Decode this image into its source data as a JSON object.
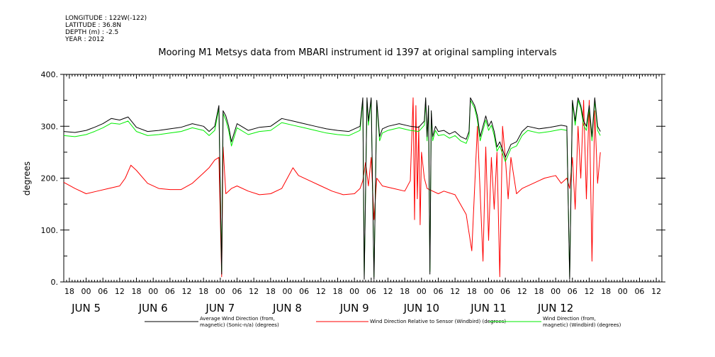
{
  "header": {
    "longitude": "LONGITUDE : 122W(-122)",
    "latitude": "LATITUDE : 36.8N",
    "depth": "DEPTH (m) : -2.5",
    "year": "YEAR : 2012",
    "title": "Mooring M1 Metsys data from MBARI instrument id 1397 at original sampling intervals"
  },
  "chart_data": {
    "type": "line",
    "title": "Mooring M1 Metsys data from MBARI instrument id 1397 at original sampling intervals",
    "ylabel": "degrees",
    "ylim": [
      0,
      400
    ],
    "yticks": [
      0,
      100,
      200,
      300,
      400
    ],
    "ytick_labels": [
      "0.",
      "100.",
      "200.",
      "300.",
      "400."
    ],
    "xlim_hours": [
      -8,
      206
    ],
    "x_unit": "hours since 2012-06-05 00:00",
    "xticks": [
      {
        "h": -6,
        "label": "18"
      },
      {
        "h": 0,
        "label": "00"
      },
      {
        "h": 6,
        "label": "06"
      },
      {
        "h": 12,
        "label": "12"
      },
      {
        "h": 18,
        "label": "18"
      },
      {
        "h": 24,
        "label": "00"
      },
      {
        "h": 30,
        "label": "06"
      },
      {
        "h": 36,
        "label": "12"
      },
      {
        "h": 42,
        "label": "18"
      },
      {
        "h": 48,
        "label": "00"
      },
      {
        "h": 54,
        "label": "06"
      },
      {
        "h": 60,
        "label": "12"
      },
      {
        "h": 66,
        "label": "18"
      },
      {
        "h": 72,
        "label": "00"
      },
      {
        "h": 78,
        "label": "06"
      },
      {
        "h": 84,
        "label": "12"
      },
      {
        "h": 90,
        "label": "18"
      },
      {
        "h": 96,
        "label": "00"
      },
      {
        "h": 102,
        "label": "06"
      },
      {
        "h": 108,
        "label": "12"
      },
      {
        "h": 114,
        "label": "18"
      },
      {
        "h": 120,
        "label": "00"
      },
      {
        "h": 126,
        "label": "06"
      },
      {
        "h": 132,
        "label": "12"
      },
      {
        "h": 138,
        "label": "18"
      },
      {
        "h": 144,
        "label": "00"
      },
      {
        "h": 150,
        "label": "06"
      },
      {
        "h": 156,
        "label": "12"
      },
      {
        "h": 162,
        "label": "18"
      },
      {
        "h": 168,
        "label": "00"
      },
      {
        "h": 174,
        "label": "06"
      },
      {
        "h": 180,
        "label": "12"
      },
      {
        "h": 186,
        "label": "18"
      },
      {
        "h": 192,
        "label": "00"
      },
      {
        "h": 198,
        "label": "06"
      },
      {
        "h": 204,
        "label": "12"
      }
    ],
    "date_labels": [
      {
        "h": 0,
        "label": "JUN  5"
      },
      {
        "h": 24,
        "label": "JUN  6"
      },
      {
        "h": 48,
        "label": "JUN  7"
      },
      {
        "h": 72,
        "label": "JUN  8"
      },
      {
        "h": 96,
        "label": "JUN  9"
      },
      {
        "h": 120,
        "label": "JUN 10"
      },
      {
        "h": 144,
        "label": "JUN 11"
      },
      {
        "h": 168,
        "label": "JUN 12"
      }
    ],
    "series": [
      {
        "name": "Average Wind Direction (from, magnetic) (Sonic-n/a) (degrees)",
        "legend_lines": [
          "Average Wind Direction (from,",
          "magnetic) (Sonic-n/a) (degrees)"
        ],
        "color": "#000000",
        "x": [
          -8,
          -4,
          0,
          3,
          6,
          9,
          12,
          15,
          18,
          22,
          26,
          30,
          34,
          38,
          42,
          44,
          46,
          47.5,
          48.5,
          49,
          50,
          51,
          52,
          54,
          58,
          62,
          66,
          70,
          74,
          78,
          82,
          86,
          90,
          94,
          98,
          99,
          99.5,
          100.5,
          101,
          102,
          103,
          104,
          105,
          106,
          108,
          112,
          116,
          119,
          121,
          121.5,
          122,
          122.5,
          123,
          123.5,
          124,
          125,
          126,
          128,
          130,
          132,
          134,
          136,
          137,
          137.5,
          138,
          139,
          140,
          141,
          142,
          143,
          144,
          145,
          146,
          147,
          148,
          150,
          152,
          154,
          156,
          158,
          162,
          166,
          170,
          172,
          173,
          174,
          175,
          176,
          177,
          178,
          179,
          180,
          181,
          182,
          183,
          184
        ],
        "y": [
          290,
          288,
          292,
          298,
          305,
          315,
          312,
          318,
          298,
          290,
          292,
          295,
          298,
          305,
          300,
          290,
          300,
          340,
          15,
          330,
          320,
          300,
          270,
          305,
          292,
          298,
          300,
          315,
          310,
          305,
          300,
          295,
          292,
          290,
          300,
          355,
          5,
          355,
          310,
          355,
          5,
          350,
          280,
          295,
          300,
          305,
          300,
          298,
          310,
          355,
          280,
          340,
          15,
          330,
          280,
          300,
          290,
          292,
          285,
          290,
          280,
          275,
          290,
          355,
          350,
          340,
          320,
          280,
          300,
          320,
          300,
          310,
          290,
          260,
          270,
          240,
          265,
          270,
          290,
          300,
          295,
          298,
          302,
          300,
          5,
          350,
          310,
          355,
          340,
          310,
          300,
          340,
          280,
          355,
          300,
          290
        ]
      },
      {
        "name": "Wind Direction Relative to Sensor (Windbird) (degrees)",
        "legend_lines": [
          "Wind Direction Relative to Sensor (Windbird) (degrees)"
        ],
        "color": "#ff0000",
        "x": [
          -8,
          -4,
          0,
          4,
          8,
          12,
          14,
          16,
          18,
          22,
          26,
          30,
          34,
          38,
          42,
          44,
          46,
          47.5,
          48.5,
          49,
          50,
          52,
          54,
          58,
          62,
          66,
          70,
          72,
          74,
          76,
          80,
          84,
          88,
          92,
          96,
          98,
          99,
          100,
          101,
          102,
          103,
          104,
          106,
          110,
          114,
          116,
          117,
          117.5,
          118,
          118.5,
          119,
          119.5,
          120,
          121,
          122,
          124,
          126,
          128,
          132,
          136,
          138,
          140,
          142,
          143,
          144,
          145,
          146,
          147,
          148,
          149,
          150,
          151,
          152,
          154,
          156,
          160,
          164,
          168,
          170,
          172,
          173,
          174,
          175,
          176,
          177,
          178,
          179,
          180,
          181,
          182,
          183,
          184
        ],
        "y": [
          192,
          180,
          170,
          175,
          180,
          185,
          200,
          225,
          215,
          190,
          180,
          178,
          178,
          190,
          210,
          220,
          235,
          240,
          10,
          260,
          170,
          180,
          185,
          175,
          168,
          170,
          180,
          200,
          220,
          205,
          195,
          185,
          175,
          168,
          170,
          180,
          195,
          230,
          185,
          240,
          120,
          200,
          185,
          180,
          175,
          195,
          355,
          120,
          340,
          160,
          300,
          110,
          250,
          200,
          180,
          175,
          170,
          175,
          168,
          130,
          60,
          300,
          40,
          260,
          80,
          240,
          140,
          250,
          10,
          300,
          240,
          160,
          240,
          170,
          180,
          190,
          200,
          205,
          190,
          200,
          180,
          240,
          140,
          300,
          200,
          350,
          160,
          350,
          40,
          330,
          190,
          250
        ]
      },
      {
        "name": "Wind Direction (from, magnetic) (Windbird) (degrees)",
        "legend_lines": [
          "Wind Direction (from,",
          "magnetic) (Windbird) (degrees)"
        ],
        "color": "#00ee00",
        "x": [
          -8,
          -4,
          0,
          3,
          6,
          9,
          12,
          15,
          18,
          22,
          26,
          30,
          34,
          38,
          42,
          44,
          46,
          47.5,
          48.5,
          49,
          50,
          51,
          52,
          54,
          58,
          62,
          66,
          70,
          74,
          78,
          82,
          86,
          90,
          94,
          98,
          99,
          99.5,
          100.5,
          101,
          102,
          103,
          104,
          105,
          106,
          108,
          112,
          116,
          119,
          121,
          121.5,
          122,
          122.5,
          123,
          123.5,
          124,
          125,
          126,
          128,
          130,
          132,
          134,
          136,
          137,
          137.5,
          138,
          139,
          140,
          141,
          142,
          143,
          144,
          145,
          146,
          147,
          148,
          150,
          152,
          154,
          156,
          158,
          162,
          166,
          170,
          172,
          173,
          174,
          175,
          176,
          177,
          178,
          179,
          180,
          181,
          182,
          183,
          184
        ],
        "y": [
          282,
          280,
          284,
          290,
          297,
          306,
          304,
          310,
          290,
          282,
          284,
          287,
          290,
          297,
          292,
          282,
          292,
          335,
          20,
          325,
          312,
          292,
          262,
          297,
          284,
          290,
          292,
          307,
          302,
          297,
          292,
          287,
          284,
          282,
          292,
          350,
          10,
          350,
          302,
          350,
          10,
          345,
          272,
          287,
          292,
          297,
          292,
          290,
          302,
          350,
          272,
          335,
          20,
          325,
          272,
          292,
          282,
          284,
          277,
          282,
          272,
          267,
          282,
          350,
          345,
          335,
          312,
          272,
          292,
          312,
          292,
          302,
          282,
          252,
          262,
          232,
          257,
          262,
          282,
          292,
          287,
          290,
          294,
          292,
          10,
          345,
          302,
          350,
          335,
          302,
          292,
          335,
          272,
          350,
          292,
          282
        ]
      }
    ]
  }
}
